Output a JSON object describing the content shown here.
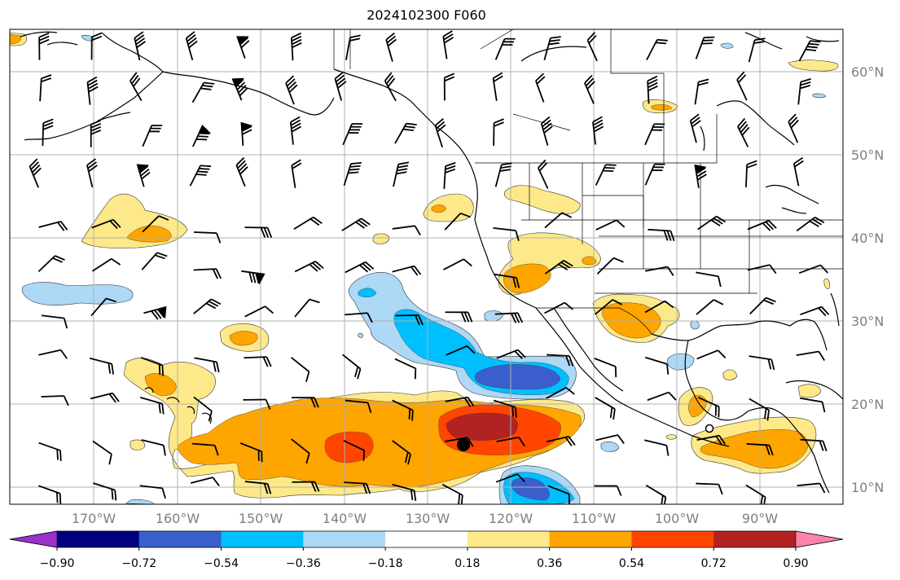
{
  "title": "2024102300 F060",
  "map": {
    "lat_labels": [
      "10°N",
      "20°N",
      "30°N",
      "40°N",
      "50°N",
      "60°N"
    ],
    "lon_labels": [
      "170°W",
      "160°W",
      "150°W",
      "140°W",
      "130°W",
      "120°W",
      "110°W",
      "100°W",
      "90°W"
    ],
    "grid_color": "#b0b0b0",
    "marker_filled": "typhoon-center-marker",
    "marker_open": "open-circle-marker"
  },
  "colorbar": {
    "colors": [
      "#9932cc",
      "#000080",
      "#3a5fcd",
      "#00bfff",
      "#add8f6",
      "#ffffff",
      "#fde98a",
      "#ffa500",
      "#ff4500",
      "#b22222",
      "#ff82ab"
    ],
    "tick_labels": [
      "−0.90",
      "−0.72",
      "−0.54",
      "−0.36",
      "−0.18",
      "0.18",
      "0.36",
      "0.54",
      "0.72",
      "0.90"
    ]
  }
}
